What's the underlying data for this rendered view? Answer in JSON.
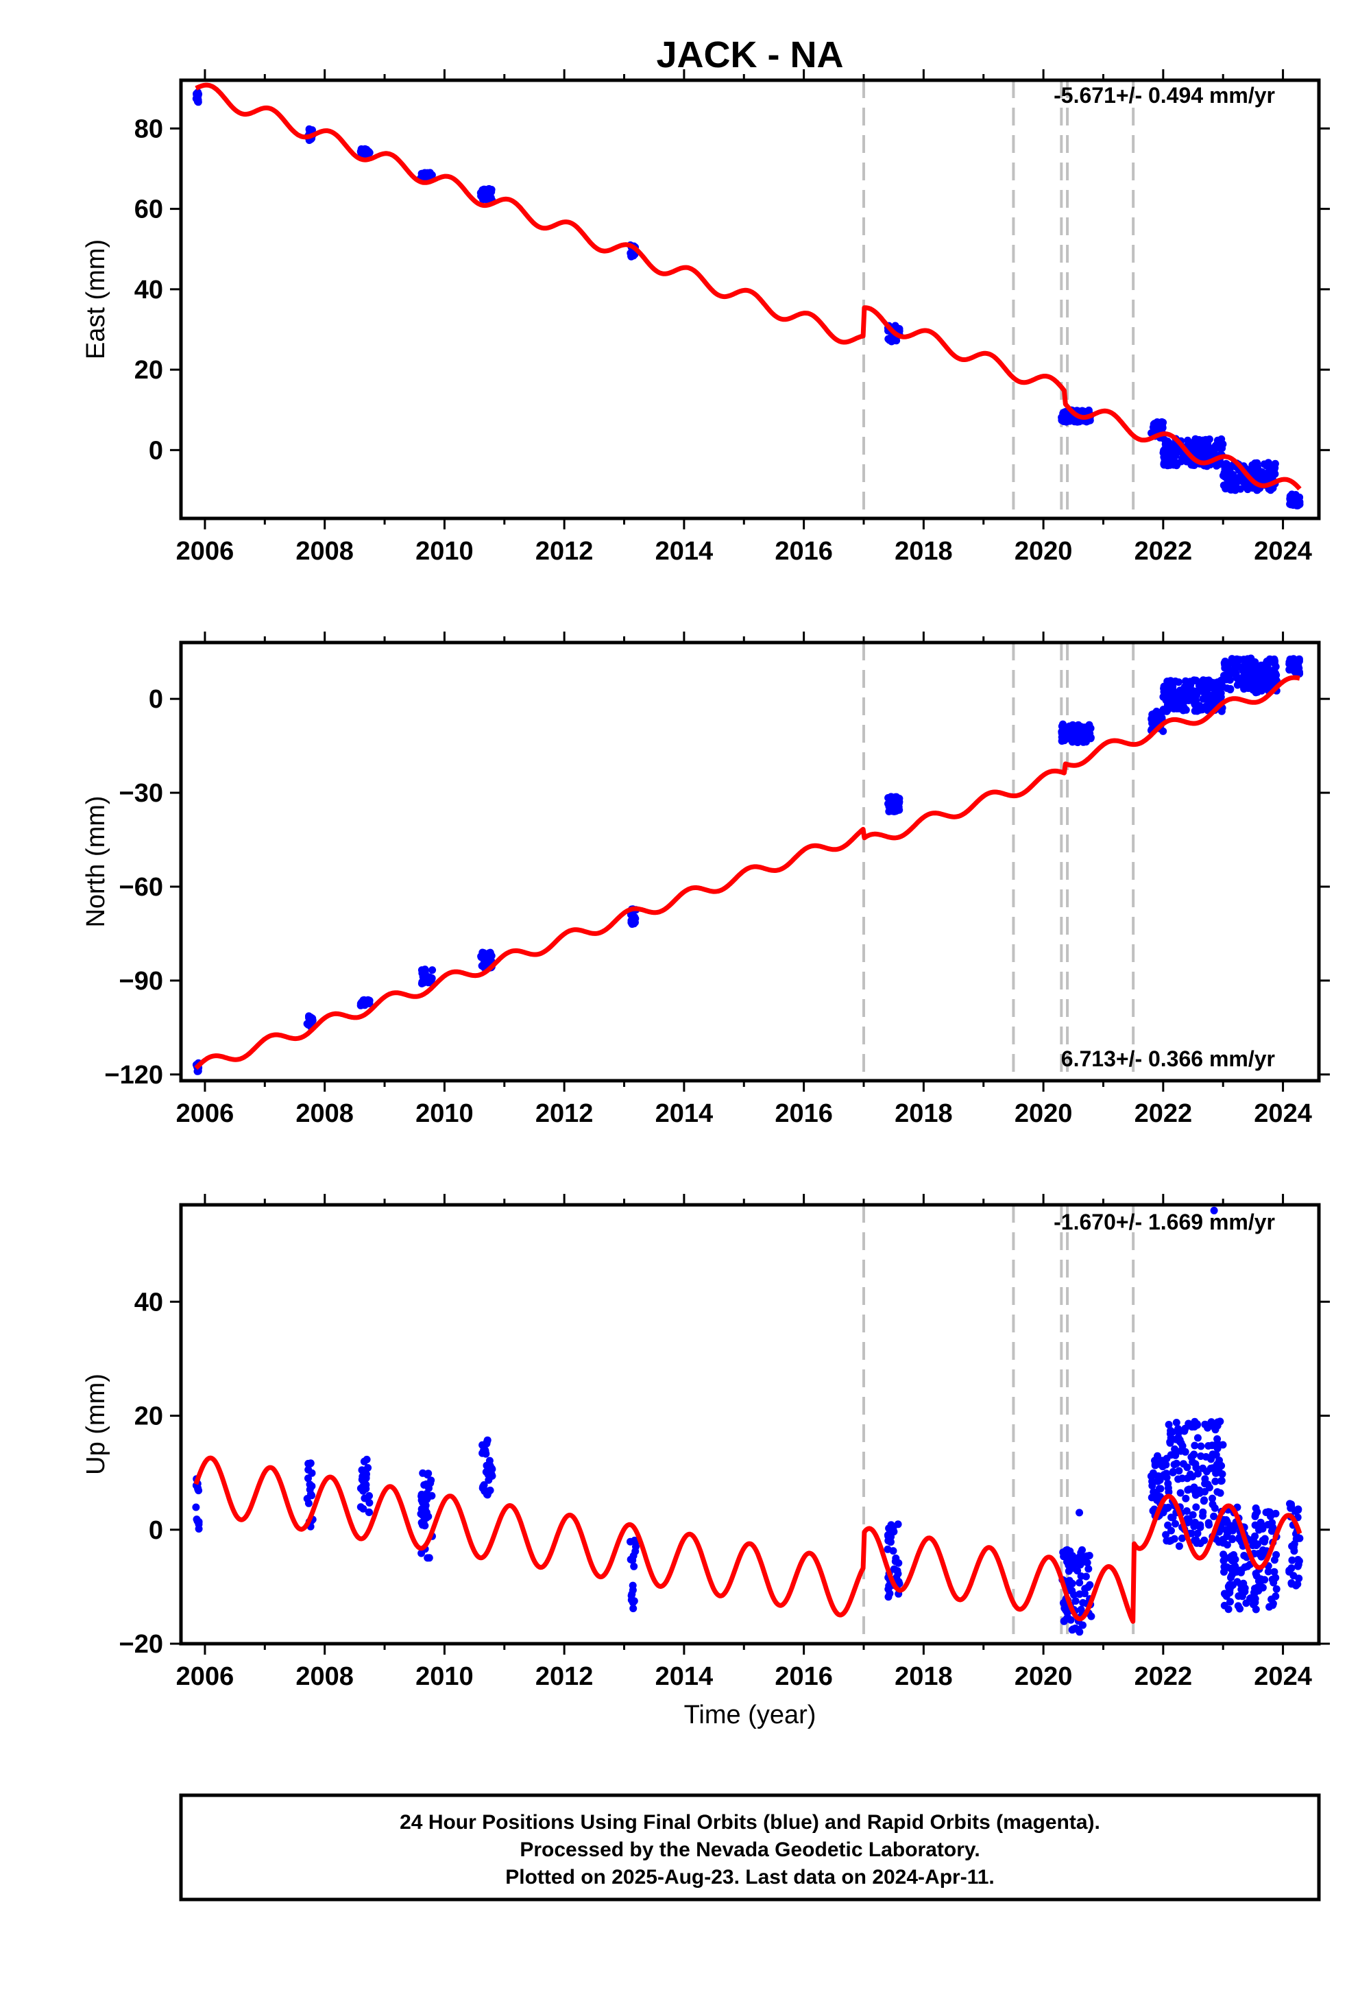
{
  "title": "JACK - NA",
  "xlabel": "Time (year)",
  "footer": [
    "24 Hour Positions Using Final Orbits (blue) and Rapid Orbits (magenta).",
    "Processed by the Nevada Geodetic Laboratory.",
    "Plotted on 2025-Aug-23. Last data on 2024-Apr-11."
  ],
  "colors": {
    "data": "#0000ff",
    "model": "#ff0000",
    "event_lines": "#c0c0c0"
  },
  "chart_data": [
    {
      "type": "scatter",
      "name": "East",
      "ylabel": "East (mm)",
      "rate": "-5.671+/- 0.494 mm/yr",
      "xlim": [
        2005.6,
        2024.6
      ],
      "ylim": [
        -17,
        92
      ],
      "xticks": [
        2006,
        2008,
        2010,
        2012,
        2014,
        2016,
        2018,
        2020,
        2022,
        2024
      ],
      "yticks": [
        0,
        20,
        40,
        60,
        80
      ],
      "events": [
        2017.0,
        2019.5,
        2020.3,
        2020.4,
        2021.5
      ],
      "clusters": [
        {
          "x0": 2005.85,
          "x1": 2005.9,
          "y0": 86,
          "y1": 89
        },
        {
          "x0": 2007.7,
          "x1": 2007.8,
          "y0": 77,
          "y1": 80
        },
        {
          "x0": 2008.6,
          "x1": 2008.75,
          "y0": 73,
          "y1": 75
        },
        {
          "x0": 2009.6,
          "x1": 2009.8,
          "y0": 67,
          "y1": 69
        },
        {
          "x0": 2010.6,
          "x1": 2010.8,
          "y0": 62,
          "y1": 65
        },
        {
          "x0": 2013.1,
          "x1": 2013.2,
          "y0": 48,
          "y1": 51
        },
        {
          "x0": 2017.4,
          "x1": 2017.6,
          "y0": 27,
          "y1": 31
        },
        {
          "x0": 2020.3,
          "x1": 2020.8,
          "y0": 7,
          "y1": 10
        },
        {
          "x0": 2021.8,
          "x1": 2022.0,
          "y0": 3,
          "y1": 7
        },
        {
          "x0": 2022.0,
          "x1": 2023.0,
          "y0": -4,
          "y1": 3
        },
        {
          "x0": 2023.0,
          "x1": 2023.9,
          "y0": -10,
          "y1": -3
        },
        {
          "x0": 2024.1,
          "x1": 2024.28,
          "y0": -14,
          "y1": -11
        }
      ],
      "model": {
        "t0": 2005.85,
        "t1": 2024.28,
        "y0": 90.0,
        "slope": -5.671,
        "amp": 2.0,
        "phase": 0.0,
        "offsets": [
          {
            "t": 2017.0,
            "dy": 7.0
          },
          {
            "t": 2020.35,
            "dy": -3.0
          }
        ]
      }
    },
    {
      "type": "scatter",
      "name": "North",
      "ylabel": "North (mm)",
      "rate": "6.713+/- 0.366 mm/yr",
      "xlim": [
        2005.6,
        2024.6
      ],
      "ylim": [
        -122,
        18
      ],
      "xticks": [
        2006,
        2008,
        2010,
        2012,
        2014,
        2016,
        2018,
        2020,
        2022,
        2024
      ],
      "yticks": [
        -120,
        -90,
        -60,
        -30,
        0
      ],
      "events": [
        2017.0,
        2019.5,
        2020.3,
        2020.4,
        2021.5
      ],
      "clusters": [
        {
          "x0": 2005.85,
          "x1": 2005.9,
          "y0": -119,
          "y1": -116
        },
        {
          "x0": 2007.7,
          "x1": 2007.8,
          "y0": -105,
          "y1": -101
        },
        {
          "x0": 2008.6,
          "x1": 2008.75,
          "y0": -98,
          "y1": -96
        },
        {
          "x0": 2009.6,
          "x1": 2009.8,
          "y0": -91,
          "y1": -86
        },
        {
          "x0": 2010.6,
          "x1": 2010.8,
          "y0": -86,
          "y1": -81
        },
        {
          "x0": 2013.1,
          "x1": 2013.2,
          "y0": -72,
          "y1": -67
        },
        {
          "x0": 2017.4,
          "x1": 2017.6,
          "y0": -36,
          "y1": -31
        },
        {
          "x0": 2020.3,
          "x1": 2020.8,
          "y0": -14,
          "y1": -8
        },
        {
          "x0": 2021.8,
          "x1": 2022.0,
          "y0": -11,
          "y1": -4
        },
        {
          "x0": 2022.0,
          "x1": 2023.0,
          "y0": -4,
          "y1": 6
        },
        {
          "x0": 2023.0,
          "x1": 2023.9,
          "y0": 2,
          "y1": 13
        },
        {
          "x0": 2024.1,
          "x1": 2024.28,
          "y0": 8,
          "y1": 13
        }
      ],
      "model": {
        "t0": 2005.85,
        "t1": 2024.28,
        "y0": -118.0,
        "slope": 6.713,
        "amp": 2.0,
        "phase": 0.0,
        "offsets": [
          {
            "t": 2017.0,
            "dy": -3.0
          },
          {
            "t": 2020.35,
            "dy": 3.0
          }
        ]
      }
    },
    {
      "type": "scatter",
      "name": "Up",
      "ylabel": "Up (mm)",
      "rate": "-1.670+/- 1.669 mm/yr",
      "xlim": [
        2005.6,
        2024.6
      ],
      "ylim": [
        -20,
        57
      ],
      "xticks": [
        2006,
        2008,
        2010,
        2012,
        2014,
        2016,
        2018,
        2020,
        2022,
        2024
      ],
      "yticks": [
        -20,
        0,
        20,
        40
      ],
      "events": [
        2017.0,
        2019.5,
        2020.3,
        2020.4,
        2021.5
      ],
      "clusters": [
        {
          "x0": 2005.85,
          "x1": 2005.9,
          "y0": 0,
          "y1": 9
        },
        {
          "x0": 2007.7,
          "x1": 2007.8,
          "y0": 0,
          "y1": 12
        },
        {
          "x0": 2008.6,
          "x1": 2008.75,
          "y0": 3,
          "y1": 13
        },
        {
          "x0": 2009.6,
          "x1": 2009.8,
          "y0": -5,
          "y1": 10
        },
        {
          "x0": 2010.6,
          "x1": 2010.8,
          "y0": 6,
          "y1": 16
        },
        {
          "x0": 2013.1,
          "x1": 2013.2,
          "y0": -14,
          "y1": -1
        },
        {
          "x0": 2017.4,
          "x1": 2017.6,
          "y0": -12,
          "y1": 1
        },
        {
          "x0": 2020.3,
          "x1": 2020.8,
          "y0": -18,
          "y1": -3
        },
        {
          "x0": 2021.8,
          "x1": 2022.0,
          "y0": 2,
          "y1": 13
        },
        {
          "x0": 2022.0,
          "x1": 2023.0,
          "y0": -3,
          "y1": 19
        },
        {
          "x0": 2023.0,
          "x1": 2023.9,
          "y0": -14,
          "y1": 4
        },
        {
          "x0": 2024.1,
          "x1": 2024.28,
          "y0": -10,
          "y1": 5
        }
      ],
      "outliers": [
        [
          2022.85,
          56
        ],
        [
          2022.95,
          19
        ],
        [
          2020.6,
          3
        ]
      ],
      "model": {
        "t0": 2005.85,
        "t1": 2024.28,
        "y0": 8.0,
        "slope": -1.67,
        "amp": 5.0,
        "phase": 0.0,
        "offsets": [
          {
            "t": 2017.0,
            "dy": 6.0
          },
          {
            "t": 2021.5,
            "dy": 14.0
          }
        ]
      }
    }
  ]
}
